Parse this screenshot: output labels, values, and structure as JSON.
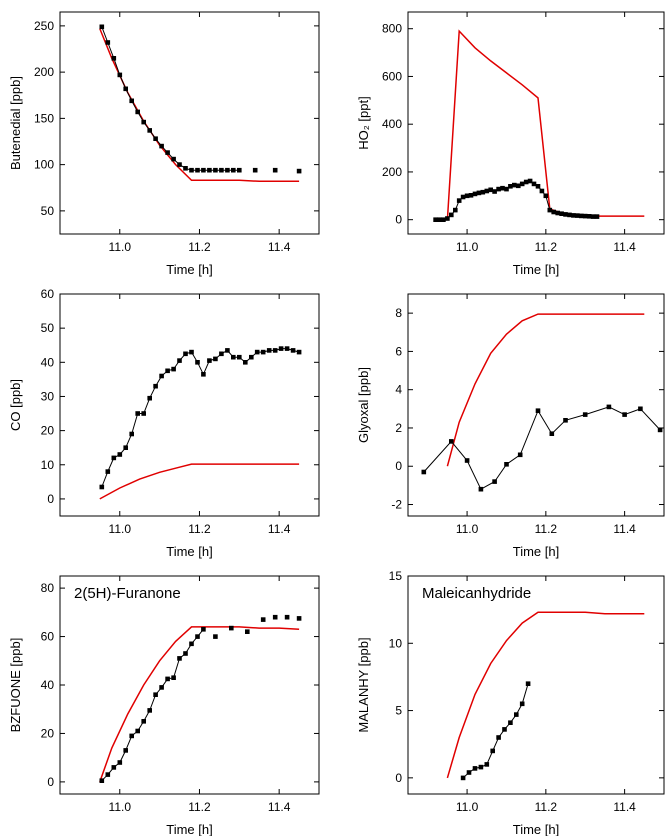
{
  "chart_data": [
    {
      "type": "line",
      "xlabel": "Time [h]",
      "ylabel": "Butenedial [ppb]",
      "xlim": [
        10.85,
        11.5
      ],
      "ylim": [
        25,
        265
      ],
      "xticks": [
        11.0,
        11.2,
        11.4
      ],
      "xtick_labels": [
        "11.0",
        "11.2",
        "11.4"
      ],
      "yticks": [
        50,
        100,
        150,
        200,
        250
      ],
      "ytick_labels": [
        "50",
        "100",
        "150",
        "200",
        "250"
      ],
      "annotation": "",
      "series": [
        {
          "style": "model",
          "color": "#e00000",
          "x": [
            10.95,
            10.98,
            11.02,
            11.06,
            11.1,
            11.14,
            11.18,
            11.25,
            11.3,
            11.35,
            11.4,
            11.45
          ],
          "y": [
            247,
            215,
            178,
            147,
            121,
            100,
            83,
            83,
            83,
            82,
            82,
            82
          ]
        },
        {
          "style": "measured",
          "color": "#000000",
          "markers": true,
          "x": [
            10.955,
            10.97,
            10.985,
            11.0,
            11.015,
            11.03,
            11.045,
            11.06,
            11.075,
            11.09,
            11.105,
            11.12,
            11.135,
            11.15,
            11.165,
            11.18,
            11.195,
            11.21,
            11.225,
            11.24,
            11.255,
            11.27,
            11.285,
            11.3
          ],
          "y": [
            249,
            232,
            215,
            197,
            182,
            169,
            157,
            146,
            137,
            128,
            120,
            113,
            106,
            100,
            96,
            94,
            94,
            94,
            94,
            94,
            94,
            94,
            94,
            94
          ]
        },
        {
          "style": "markers",
          "color": "#000000",
          "markers": true,
          "x": [
            11.34,
            11.39,
            11.45
          ],
          "y": [
            94,
            94,
            93
          ]
        }
      ]
    },
    {
      "type": "line",
      "xlabel": "Time [h]",
      "ylabel": "HO₂ [ppt]",
      "xlim": [
        10.85,
        11.5
      ],
      "ylim": [
        -60,
        870
      ],
      "xticks": [
        11.0,
        11.2,
        11.4
      ],
      "xtick_labels": [
        "11.0",
        "11.2",
        "11.4"
      ],
      "yticks": [
        0,
        200,
        400,
        600,
        800
      ],
      "ytick_labels": [
        "0",
        "200",
        "400",
        "600",
        "800"
      ],
      "annotation": "",
      "series": [
        {
          "style": "model",
          "color": "#e00000",
          "x": [
            10.95,
            10.98,
            11.02,
            11.06,
            11.1,
            11.14,
            11.18,
            11.21,
            11.25,
            11.3,
            11.35,
            11.4,
            11.45
          ],
          "y": [
            0,
            790,
            720,
            665,
            615,
            565,
            510,
            45,
            22,
            15,
            15,
            15,
            15
          ]
        },
        {
          "style": "measured",
          "color": "#000000",
          "markers": true,
          "x": [
            10.92,
            10.93,
            10.94,
            10.95,
            10.96,
            10.97,
            10.98,
            10.99,
            11.0,
            11.01,
            11.02,
            11.03,
            11.04,
            11.05,
            11.06,
            11.07,
            11.08,
            11.09,
            11.1,
            11.11,
            11.12,
            11.13,
            11.14,
            11.15,
            11.16,
            11.17,
            11.18,
            11.19,
            11.2,
            11.21,
            11.22,
            11.23,
            11.24,
            11.25,
            11.26,
            11.27,
            11.28,
            11.29,
            11.3,
            11.31,
            11.32,
            11.33
          ],
          "y": [
            0,
            0,
            0,
            5,
            20,
            40,
            80,
            95,
            100,
            102,
            108,
            112,
            115,
            120,
            125,
            118,
            128,
            132,
            128,
            140,
            145,
            142,
            150,
            158,
            162,
            150,
            140,
            120,
            100,
            40,
            32,
            28,
            25,
            22,
            20,
            18,
            17,
            16,
            15,
            14,
            13,
            13
          ]
        }
      ]
    },
    {
      "type": "line",
      "xlabel": "Time [h]",
      "ylabel": "CO [ppb]",
      "xlim": [
        10.85,
        11.5
      ],
      "ylim": [
        -5,
        60
      ],
      "xticks": [
        11.0,
        11.2,
        11.4
      ],
      "xtick_labels": [
        "11.0",
        "11.2",
        "11.4"
      ],
      "yticks": [
        0,
        10,
        20,
        30,
        40,
        50,
        60
      ],
      "ytick_labels": [
        "0",
        "10",
        "20",
        "30",
        "40",
        "50",
        "60"
      ],
      "annotation": "",
      "series": [
        {
          "style": "model",
          "color": "#e00000",
          "x": [
            10.95,
            11.0,
            11.05,
            11.1,
            11.15,
            11.18,
            11.25,
            11.3,
            11.35,
            11.4,
            11.45
          ],
          "y": [
            0,
            3.2,
            5.8,
            7.8,
            9.3,
            10.2,
            10.2,
            10.2,
            10.2,
            10.2,
            10.2
          ]
        },
        {
          "style": "measured",
          "color": "#000000",
          "markers": true,
          "x": [
            10.955,
            10.97,
            10.985,
            11.0,
            11.015,
            11.03,
            11.045,
            11.06,
            11.075,
            11.09,
            11.105,
            11.12,
            11.135,
            11.15,
            11.165,
            11.18,
            11.195,
            11.21,
            11.225,
            11.24,
            11.255,
            11.27,
            11.285,
            11.3,
            11.315,
            11.33,
            11.345,
            11.36,
            11.375,
            11.39,
            11.405,
            11.42,
            11.435,
            11.45
          ],
          "y": [
            3.5,
            8,
            12,
            13,
            15,
            19,
            25,
            25,
            29.5,
            33,
            36,
            37.5,
            38,
            40.5,
            42.5,
            43,
            40,
            36.5,
            40.5,
            41,
            42.5,
            43.5,
            41.5,
            41.5,
            40,
            41.5,
            43,
            43,
            43.5,
            43.5,
            44,
            44,
            43.5,
            43
          ]
        }
      ]
    },
    {
      "type": "line",
      "xlabel": "Time [h]",
      "ylabel": "Glyoxal [ppb]",
      "xlim": [
        10.85,
        11.5
      ],
      "ylim": [
        -2.6,
        9
      ],
      "xticks": [
        11.0,
        11.2,
        11.4
      ],
      "xtick_labels": [
        "11.0",
        "11.2",
        "11.4"
      ],
      "yticks": [
        -2,
        0,
        2,
        4,
        6,
        8
      ],
      "ytick_labels": [
        "-2",
        "0",
        "2",
        "4",
        "6",
        "8"
      ],
      "annotation": "",
      "series": [
        {
          "style": "model",
          "color": "#e00000",
          "x": [
            10.95,
            10.98,
            11.02,
            11.06,
            11.1,
            11.14,
            11.18,
            11.25,
            11.3,
            11.35,
            11.4,
            11.45
          ],
          "y": [
            0,
            2.3,
            4.3,
            5.9,
            6.9,
            7.6,
            7.95,
            7.95,
            7.95,
            7.95,
            7.95,
            7.95
          ]
        },
        {
          "style": "measured",
          "color": "#000000",
          "markers": true,
          "x": [
            10.89,
            10.96,
            11.0,
            11.035,
            11.07,
            11.1,
            11.135,
            11.18,
            11.215,
            11.25,
            11.3,
            11.36,
            11.4,
            11.44,
            11.49
          ],
          "y": [
            -0.3,
            1.3,
            0.3,
            -1.2,
            -0.8,
            0.1,
            0.6,
            2.9,
            1.7,
            2.4,
            2.7,
            3.1,
            2.7,
            3.0,
            1.9
          ]
        }
      ]
    },
    {
      "type": "line",
      "xlabel": "Time [h]",
      "ylabel": "BZFUONE [ppb]",
      "xlim": [
        10.85,
        11.5
      ],
      "ylim": [
        -5,
        85
      ],
      "xticks": [
        11.0,
        11.2,
        11.4
      ],
      "xtick_labels": [
        "11.0",
        "11.2",
        "11.4"
      ],
      "yticks": [
        0,
        20,
        40,
        60,
        80
      ],
      "ytick_labels": [
        "0",
        "20",
        "40",
        "60",
        "80"
      ],
      "annotation": "2(5H)-Furanone",
      "series": [
        {
          "style": "model",
          "color": "#e00000",
          "x": [
            10.95,
            10.98,
            11.02,
            11.06,
            11.1,
            11.14,
            11.18,
            11.25,
            11.3,
            11.35,
            11.4,
            11.45
          ],
          "y": [
            0,
            14,
            28,
            40,
            50,
            58,
            64,
            64,
            64,
            63.5,
            63.5,
            63
          ]
        },
        {
          "style": "measured",
          "color": "#000000",
          "markers": true,
          "x": [
            10.955,
            10.97,
            10.985,
            11.0,
            11.015,
            11.03,
            11.045,
            11.06,
            11.075,
            11.09,
            11.105,
            11.12,
            11.135,
            11.15,
            11.165,
            11.18,
            11.195,
            11.21
          ],
          "y": [
            0.5,
            3,
            6,
            8,
            13,
            19,
            21,
            25,
            29.5,
            36,
            39,
            42.5,
            43,
            51,
            53,
            57,
            60,
            63
          ]
        },
        {
          "style": "markers",
          "color": "#000000",
          "markers": true,
          "x": [
            11.24,
            11.28,
            11.32,
            11.36,
            11.39,
            11.42,
            11.45
          ],
          "y": [
            60,
            63.5,
            62,
            67,
            68,
            68,
            67.5
          ]
        }
      ]
    },
    {
      "type": "line",
      "xlabel": "Time [h]",
      "ylabel": "MALANHY [ppb]",
      "xlim": [
        10.85,
        11.5
      ],
      "ylim": [
        -1.2,
        15
      ],
      "xticks": [
        11.0,
        11.2,
        11.4
      ],
      "xtick_labels": [
        "11.0",
        "11.2",
        "11.4"
      ],
      "yticks": [
        0,
        5,
        10,
        15
      ],
      "ytick_labels": [
        "0",
        "5",
        "10",
        "15"
      ],
      "annotation": "Maleicanhydride",
      "series": [
        {
          "style": "model",
          "color": "#e00000",
          "x": [
            10.95,
            10.98,
            11.02,
            11.06,
            11.1,
            11.14,
            11.18,
            11.25,
            11.3,
            11.35,
            11.4,
            11.45
          ],
          "y": [
            0,
            3.0,
            6.2,
            8.5,
            10.2,
            11.5,
            12.3,
            12.3,
            12.3,
            12.2,
            12.2,
            12.2
          ]
        },
        {
          "style": "measured",
          "color": "#000000",
          "markers": true,
          "x": [
            10.99,
            11.005,
            11.02,
            11.035,
            11.05,
            11.065,
            11.08,
            11.095,
            11.11,
            11.125,
            11.14,
            11.155
          ],
          "y": [
            0,
            0.4,
            0.7,
            0.8,
            1.0,
            2.0,
            3.0,
            3.6,
            4.1,
            4.7,
            5.5,
            7.0
          ]
        }
      ]
    }
  ]
}
